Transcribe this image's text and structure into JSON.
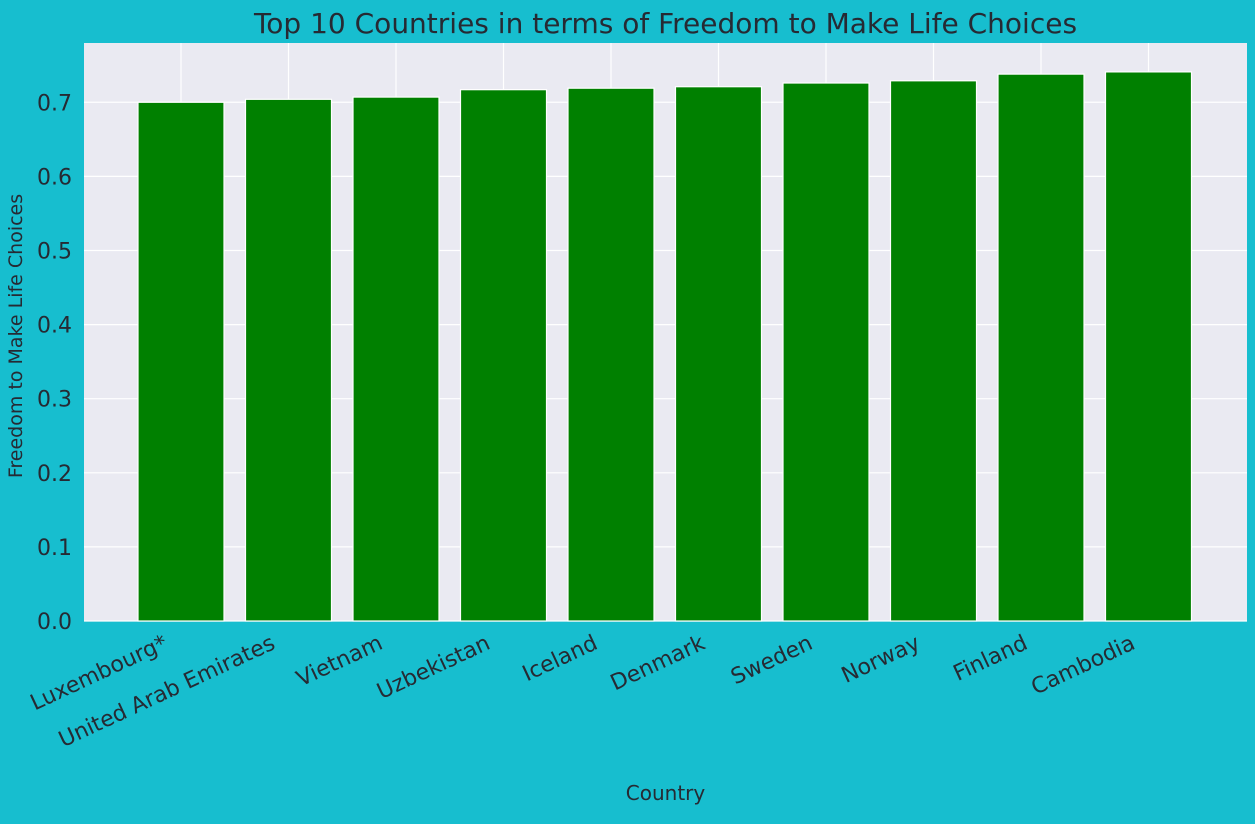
{
  "colors": {
    "background": "#17becf",
    "plot_background": "#eaeaf2",
    "grid": "#ffffff",
    "bar": "#008000",
    "text": "#262a33"
  },
  "chart_data": {
    "type": "bar",
    "title": "Top 10 Countries in terms of Freedom to Make Life Choices",
    "xlabel": "Country",
    "ylabel": "Freedom to Make Life Choices",
    "categories": [
      "Luxembourg*",
      "United Arab Emirates",
      "Vietnam",
      "Uzbekistan",
      "Iceland",
      "Denmark",
      "Sweden",
      "Norway",
      "Finland",
      "Cambodia"
    ],
    "values": [
      0.7,
      0.704,
      0.707,
      0.717,
      0.719,
      0.721,
      0.726,
      0.729,
      0.738,
      0.741
    ],
    "ylim": [
      0,
      0.78
    ],
    "yticks": [
      "0.0",
      "0.1",
      "0.2",
      "0.3",
      "0.4",
      "0.5",
      "0.6",
      "0.7"
    ],
    "grid": true,
    "legend": "none"
  }
}
